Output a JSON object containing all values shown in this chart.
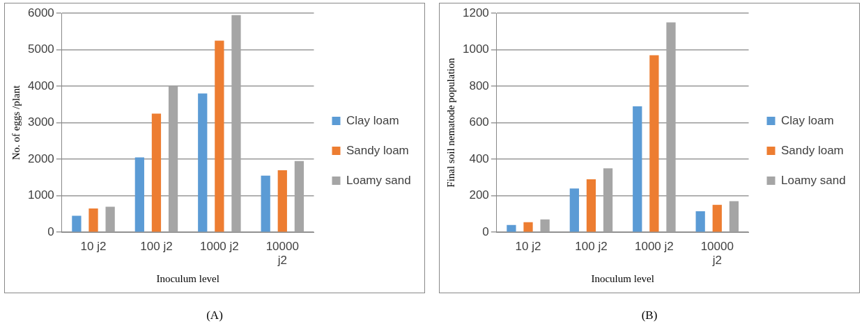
{
  "chart_data": [
    {
      "type": "bar",
      "xlabel": "Inoculum level",
      "ylabel": "No. of eggs /plant",
      "categories": [
        "10 j2",
        "100 j2",
        "1000 j2",
        "10000 j2"
      ],
      "series": [
        {
          "name": "Clay loam",
          "color": "#5b9bd5",
          "values": [
            450,
            2050,
            3800,
            1550
          ]
        },
        {
          "name": "Sandy loam",
          "color": "#ed7d31",
          "values": [
            650,
            3250,
            5250,
            1700
          ]
        },
        {
          "name": "Loamy sand",
          "color": "#a5a5a5",
          "values": [
            700,
            4000,
            5950,
            1950
          ]
        }
      ],
      "ylim": [
        0,
        6000
      ],
      "yticks": [
        0,
        1000,
        2000,
        3000,
        4000,
        5000,
        6000
      ],
      "grid": "y",
      "legend": "right",
      "annotations": [
        "(A)"
      ]
    },
    {
      "type": "bar",
      "xlabel": "Inoculum level",
      "ylabel": "Final soil nematode population",
      "categories": [
        "10 j2",
        "100 j2",
        "1000 j2",
        "10000 j2"
      ],
      "series": [
        {
          "name": "Clay loam",
          "color": "#5b9bd5",
          "values": [
            40,
            240,
            690,
            115
          ]
        },
        {
          "name": "Sandy loam",
          "color": "#ed7d31",
          "values": [
            55,
            290,
            970,
            150
          ]
        },
        {
          "name": "Loamy sand",
          "color": "#a5a5a5",
          "values": [
            70,
            350,
            1150,
            170
          ]
        }
      ],
      "ylim": [
        0,
        1200
      ],
      "yticks": [
        0,
        200,
        400,
        600,
        800,
        1000,
        1200
      ],
      "grid": "y",
      "legend": "right",
      "annotations": [
        "(B)"
      ]
    }
  ]
}
